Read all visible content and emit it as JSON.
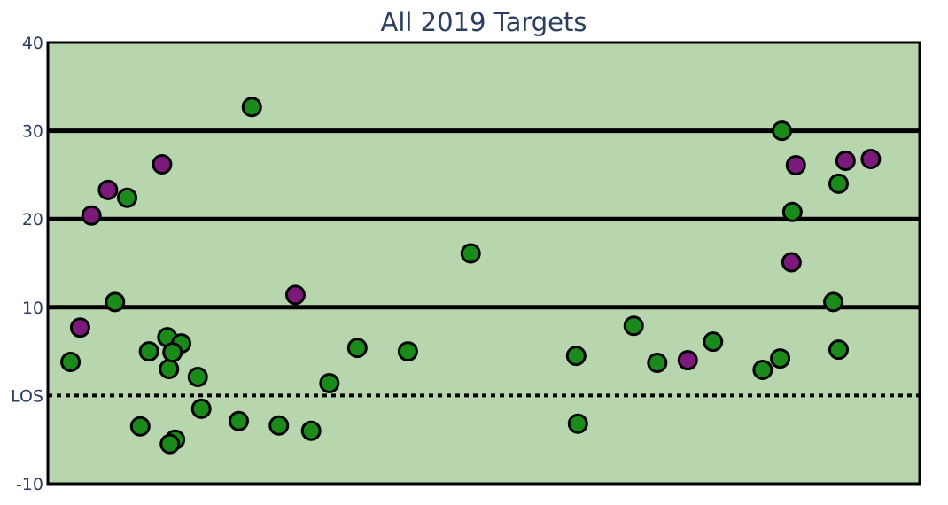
{
  "chart_data": {
    "type": "scatter",
    "title": "All 2019 Targets",
    "xlabel": "",
    "ylabel": "",
    "ylim": [
      -10,
      40
    ],
    "xlim": [
      0,
      100
    ],
    "y_ticks": [
      -10,
      0,
      10,
      20,
      30,
      40
    ],
    "y_tick_labels": [
      "-10",
      "LOS",
      "10",
      "20",
      "30",
      "40"
    ],
    "x_axis_labels_shown": false,
    "grid": false,
    "plot_background": "#b8d6ad",
    "horizontal_lines": [
      {
        "y": 10,
        "style": "solid",
        "color": "#000000"
      },
      {
        "y": 20,
        "style": "solid",
        "color": "#000000"
      },
      {
        "y": 30,
        "style": "solid",
        "color": "#000000"
      },
      {
        "y": 0,
        "style": "dotted",
        "color": "#000000"
      }
    ],
    "series": [
      {
        "color": "#1a8a1a",
        "x": [
          2.6,
          9.1,
          7.7,
          10.6,
          11.6,
          13.7,
          13.9,
          15.3,
          14.3,
          14.6,
          14.0,
          17.2,
          17.6,
          23.4,
          21.9,
          26.5,
          30.2,
          32.3,
          35.5,
          41.3,
          48.5,
          60.6,
          60.8,
          67.2,
          69.9,
          76.3,
          82.0,
          84.0,
          84.2,
          85.4,
          90.1,
          90.7,
          90.7
        ],
        "y": [
          3.8,
          22.4,
          10.6,
          -3.5,
          5.0,
          6.6,
          3.0,
          5.9,
          4.9,
          -5.0,
          -5.5,
          2.1,
          -1.5,
          32.7,
          -2.9,
          -3.4,
          -4.0,
          1.4,
          5.4,
          5.0,
          16.1,
          4.5,
          -3.2,
          7.9,
          3.7,
          6.1,
          2.9,
          4.2,
          30.0,
          20.8,
          10.6,
          24.0,
          5.2
        ]
      },
      {
        "color": "#7b1a7b",
        "x": [
          3.7,
          5.0,
          6.9,
          13.1,
          28.4,
          73.4,
          85.3,
          85.8,
          91.5,
          94.4
        ],
        "y": [
          7.7,
          20.4,
          23.3,
          26.2,
          11.4,
          4.0,
          15.1,
          26.1,
          26.6,
          26.8
        ]
      }
    ]
  }
}
